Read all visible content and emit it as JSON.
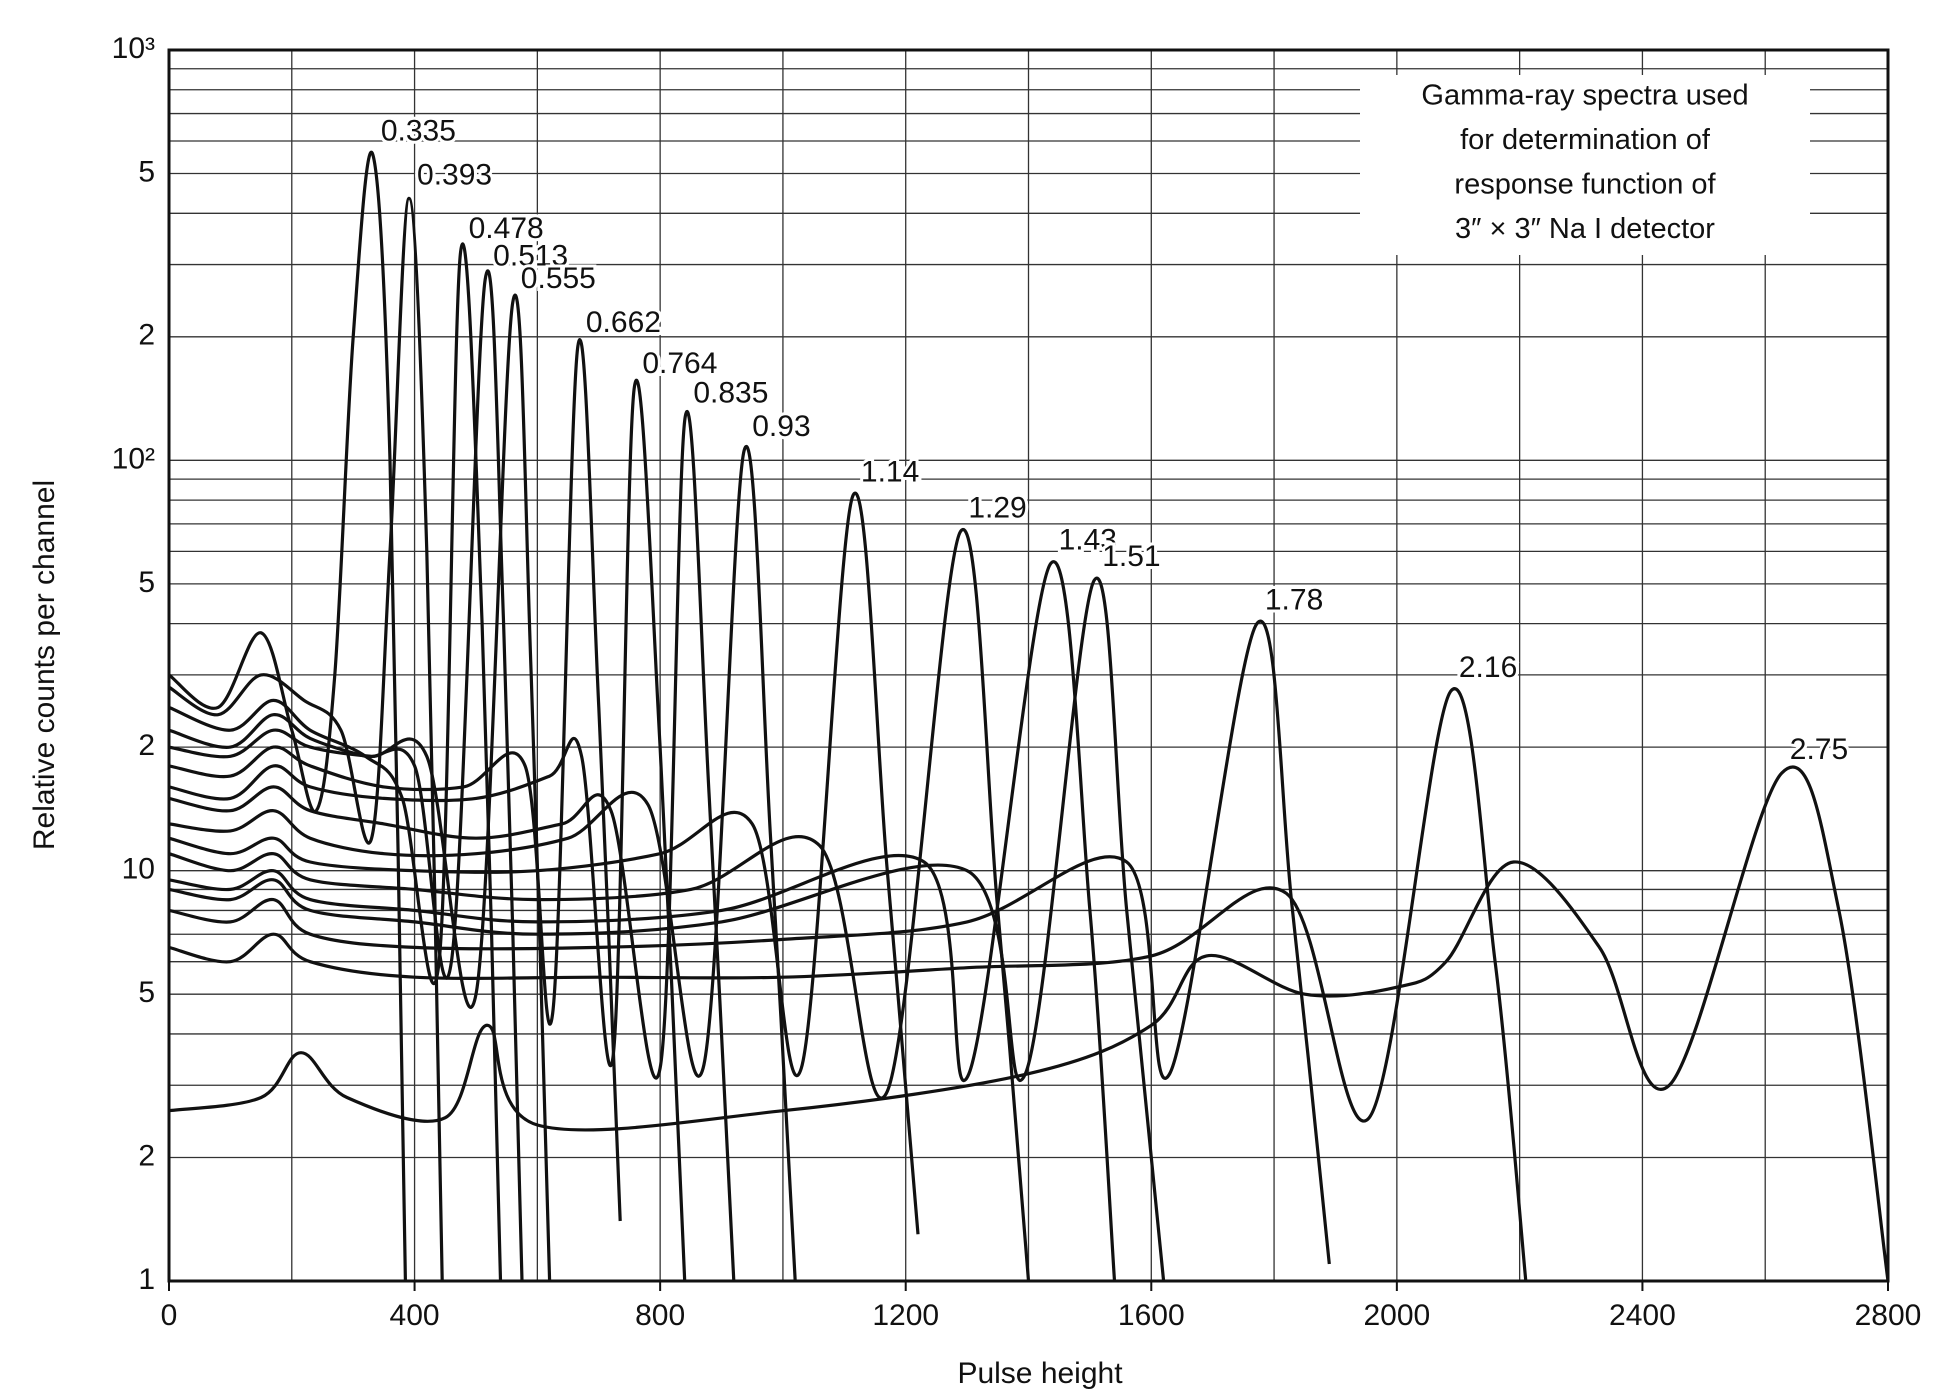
{
  "chart_data": {
    "type": "line",
    "x_label": "Pulse height",
    "y_label": "Relative counts per channel",
    "annotation": [
      "Gamma-ray spectra used",
      "for determination of",
      "response function of",
      "3″ × 3″ Na I detector"
    ],
    "log_y": true,
    "grid": true,
    "color": "#111111",
    "xlim": [
      0,
      2800
    ],
    "xticks": [
      0,
      400,
      800,
      1200,
      1600,
      2000,
      2400,
      2800
    ],
    "x_minor_grid": [
      200,
      600,
      1000,
      1400,
      1800,
      2200,
      2600
    ],
    "ylim": [
      1,
      1000
    ],
    "yticks": [
      1,
      2,
      {
        "value": 5,
        "label": "5"
      },
      10,
      {
        "value": 20,
        "label": "2"
      },
      {
        "value": 50,
        "label": "5"
      },
      {
        "value": 100,
        "label": "10²"
      },
      {
        "value": 200,
        "label": "2"
      },
      {
        "value": 500,
        "label": "5"
      },
      {
        "value": 1000,
        "label": "10³"
      }
    ],
    "y_minor_grid": [
      3,
      4,
      6,
      7,
      8,
      9,
      30,
      40,
      60,
      70,
      80,
      90,
      300,
      400,
      600,
      700,
      800,
      900
    ],
    "series": [
      {
        "name": "0.335",
        "x": [
          0,
          80,
          150,
          200,
          240,
          270,
          300,
          332,
          360,
          385
        ],
        "values": [
          30,
          25,
          38,
          22,
          14,
          30,
          200,
          556,
          100,
          1
        ]
      },
      {
        "name": "0.393",
        "x": [
          0,
          80,
          150,
          220,
          280,
          330,
          360,
          391,
          420,
          445
        ],
        "values": [
          28,
          24,
          30,
          26,
          22,
          12,
          60,
          435,
          60,
          1
        ]
      },
      {
        "name": "0.478",
        "x": [
          0,
          100,
          170,
          230,
          320,
          380,
          440,
          475,
          510,
          540
        ],
        "values": [
          25,
          22,
          26,
          22,
          19,
          15,
          6,
          322,
          40,
          1
        ]
      },
      {
        "name": "0.513",
        "x": [
          0,
          100,
          170,
          230,
          320,
          400,
          460,
          515,
          545,
          575
        ],
        "values": [
          22,
          20,
          24,
          21,
          19,
          18,
          6,
          276,
          40,
          1
        ]
      },
      {
        "name": "0.555",
        "x": [
          0,
          100,
          170,
          230,
          330,
          420,
          500,
          560,
          590,
          620
        ],
        "values": [
          20,
          19,
          22,
          20,
          19,
          19,
          5,
          243,
          30,
          1
        ]
      },
      {
        "name": "0.662",
        "x": [
          0,
          100,
          170,
          230,
          350,
          480,
          580,
          625,
          666,
          700,
          735
        ],
        "values": [
          18,
          17,
          20,
          18,
          16,
          16,
          18,
          4.5,
          190,
          25,
          1.4
        ]
      },
      {
        "name": "0.764",
        "x": [
          0,
          100,
          170,
          230,
          350,
          500,
          620,
          672,
          723,
          758,
          800,
          840
        ],
        "values": [
          16,
          15,
          18,
          16,
          15,
          15,
          17,
          19,
          3.5,
          151,
          20,
          1
        ]
      },
      {
        "name": "0.835",
        "x": [
          0,
          100,
          170,
          230,
          350,
          500,
          640,
          720,
          800,
          841,
          880,
          920
        ],
        "values": [
          15,
          14,
          16,
          14,
          13,
          12,
          13,
          14,
          3.3,
          128,
          15,
          1
        ]
      },
      {
        "name": "0.93",
        "x": [
          0,
          100,
          170,
          230,
          350,
          500,
          650,
          780,
          870,
          937,
          980,
          1020
        ],
        "values": [
          13,
          12.5,
          14,
          12,
          11,
          11,
          12,
          14.5,
          3.3,
          106,
          12,
          1
        ]
      },
      {
        "name": "1.14",
        "x": [
          0,
          100,
          170,
          230,
          400,
          600,
          800,
          950,
          1030,
          1114,
          1170,
          1220
        ],
        "values": [
          12,
          11,
          12,
          10.5,
          10,
          10,
          11,
          13,
          3.3,
          82,
          10,
          1.3
        ]
      },
      {
        "name": "1.29",
        "x": [
          0,
          100,
          170,
          230,
          400,
          600,
          850,
          1060,
          1170,
          1289,
          1350,
          1400
        ],
        "values": [
          11,
          10,
          11,
          9.5,
          9,
          8.5,
          9,
          11.5,
          2.9,
          67,
          8,
          1
        ]
      },
      {
        "name": "1.43",
        "x": [
          0,
          100,
          170,
          230,
          400,
          600,
          900,
          1230,
          1303,
          1436,
          1500,
          1540
        ],
        "values": [
          9.5,
          9,
          10,
          8.5,
          8,
          7.5,
          8,
          10.5,
          3.2,
          56,
          8,
          1
        ]
      },
      {
        "name": "1.51",
        "x": [
          0,
          100,
          170,
          230,
          400,
          600,
          900,
          1300,
          1395,
          1507,
          1560,
          1620
        ],
        "values": [
          9,
          8.5,
          9.5,
          8,
          7.5,
          7,
          7.5,
          10,
          3.2,
          51,
          8,
          1
        ]
      },
      {
        "name": "1.78",
        "x": [
          0,
          100,
          170,
          230,
          400,
          700,
          1000,
          1300,
          1560,
          1630,
          1772,
          1830,
          1890
        ],
        "values": [
          8,
          7.5,
          8.5,
          7,
          6.5,
          6.5,
          6.8,
          7.5,
          10.5,
          3.2,
          40,
          8,
          1.1
        ]
      },
      {
        "name": "2.16",
        "x": [
          0,
          100,
          170,
          230,
          400,
          700,
          1000,
          1300,
          1600,
          1820,
          1955,
          2088,
          2160,
          2210
        ],
        "values": [
          6.5,
          6,
          7,
          6,
          5.5,
          5.5,
          5.5,
          5.8,
          6.2,
          8.8,
          2.5,
          27.4,
          6,
          1
        ]
      },
      {
        "name": "2.75",
        "x": [
          0,
          150,
          215,
          290,
          450,
          519,
          600,
          1000,
          1400,
          1600,
          1690,
          1850,
          2000,
          2080,
          2190,
          2330,
          2444,
          2627,
          2720,
          2800
        ],
        "values": [
          2.6,
          2.8,
          3.6,
          2.8,
          2.5,
          4.2,
          2.4,
          2.6,
          3.2,
          4.2,
          6.2,
          5,
          5.2,
          6,
          10.5,
          6.5,
          3,
          17.3,
          8,
          1
        ]
      }
    ]
  }
}
